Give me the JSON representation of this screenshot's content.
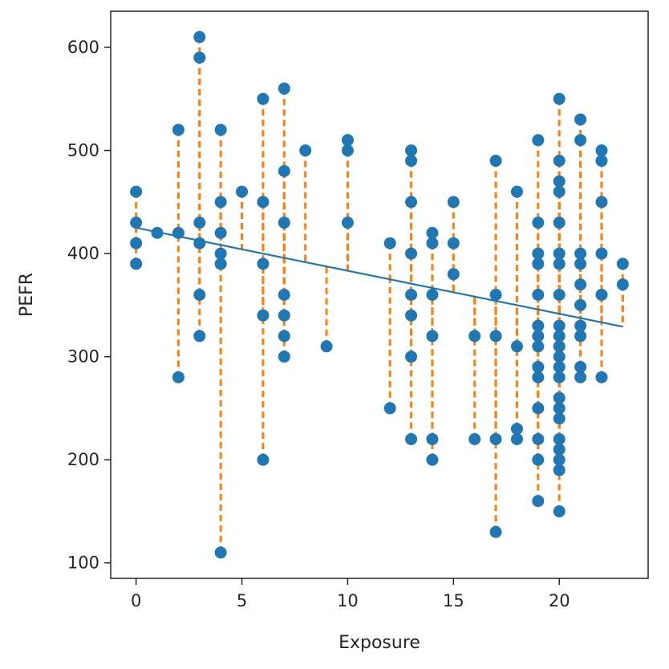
{
  "chart_data": {
    "type": "scatter",
    "title": "",
    "xlabel": "Exposure",
    "ylabel": "PEFR",
    "xlim": [
      -1.2,
      24.2
    ],
    "ylim": [
      85,
      635
    ],
    "xticks": [
      0,
      5,
      10,
      15,
      20
    ],
    "yticks": [
      100,
      200,
      300,
      400,
      500,
      600
    ],
    "grid": false,
    "colors": {
      "points": "#1f77b4",
      "fit_line": "#1f77b4",
      "residuals": "#ff7f0e"
    },
    "fit_line": {
      "intercept": 425,
      "slope": -4.17
    },
    "points": [
      [
        0,
        460
      ],
      [
        0,
        430
      ],
      [
        0,
        410
      ],
      [
        0,
        390
      ],
      [
        1,
        420
      ],
      [
        2,
        520
      ],
      [
        2,
        420
      ],
      [
        2,
        280
      ],
      [
        3,
        610
      ],
      [
        3,
        590
      ],
      [
        3,
        430
      ],
      [
        3,
        410
      ],
      [
        3,
        360
      ],
      [
        3,
        320
      ],
      [
        4,
        520
      ],
      [
        4,
        450
      ],
      [
        4,
        420
      ],
      [
        4,
        400
      ],
      [
        4,
        390
      ],
      [
        4,
        110
      ],
      [
        5,
        460
      ],
      [
        6,
        550
      ],
      [
        6,
        450
      ],
      [
        6,
        390
      ],
      [
        6,
        340
      ],
      [
        6,
        200
      ],
      [
        7,
        560
      ],
      [
        7,
        480
      ],
      [
        7,
        430
      ],
      [
        7,
        360
      ],
      [
        7,
        340
      ],
      [
        7,
        320
      ],
      [
        7,
        300
      ],
      [
        8,
        500
      ],
      [
        9,
        310
      ],
      [
        10,
        510
      ],
      [
        10,
        500
      ],
      [
        10,
        430
      ],
      [
        12,
        410
      ],
      [
        12,
        250
      ],
      [
        13,
        500
      ],
      [
        13,
        490
      ],
      [
        13,
        450
      ],
      [
        13,
        400
      ],
      [
        13,
        360
      ],
      [
        13,
        340
      ],
      [
        13,
        300
      ],
      [
        13,
        220
      ],
      [
        14,
        420
      ],
      [
        14,
        410
      ],
      [
        14,
        360
      ],
      [
        14,
        320
      ],
      [
        14,
        220
      ],
      [
        14,
        200
      ],
      [
        15,
        450
      ],
      [
        15,
        410
      ],
      [
        15,
        380
      ],
      [
        16,
        320
      ],
      [
        16,
        220
      ],
      [
        17,
        490
      ],
      [
        17,
        360
      ],
      [
        17,
        320
      ],
      [
        17,
        220
      ],
      [
        17,
        130
      ],
      [
        18,
        460
      ],
      [
        18,
        310
      ],
      [
        18,
        230
      ],
      [
        18,
        220
      ],
      [
        19,
        510
      ],
      [
        19,
        430
      ],
      [
        19,
        400
      ],
      [
        19,
        390
      ],
      [
        19,
        360
      ],
      [
        19,
        330
      ],
      [
        19,
        320
      ],
      [
        19,
        310
      ],
      [
        19,
        290
      ],
      [
        19,
        280
      ],
      [
        19,
        250
      ],
      [
        19,
        220
      ],
      [
        19,
        200
      ],
      [
        19,
        160
      ],
      [
        20,
        550
      ],
      [
        20,
        490
      ],
      [
        20,
        470
      ],
      [
        20,
        460
      ],
      [
        20,
        430
      ],
      [
        20,
        400
      ],
      [
        20,
        390
      ],
      [
        20,
        360
      ],
      [
        20,
        330
      ],
      [
        20,
        320
      ],
      [
        20,
        310
      ],
      [
        20,
        300
      ],
      [
        20,
        290
      ],
      [
        20,
        280
      ],
      [
        20,
        260
      ],
      [
        20,
        250
      ],
      [
        20,
        240
      ],
      [
        20,
        220
      ],
      [
        20,
        210
      ],
      [
        20,
        200
      ],
      [
        20,
        190
      ],
      [
        20,
        150
      ],
      [
        21,
        530
      ],
      [
        21,
        510
      ],
      [
        21,
        400
      ],
      [
        21,
        390
      ],
      [
        21,
        370
      ],
      [
        21,
        350
      ],
      [
        21,
        330
      ],
      [
        21,
        320
      ],
      [
        21,
        290
      ],
      [
        21,
        280
      ],
      [
        22,
        500
      ],
      [
        22,
        490
      ],
      [
        22,
        450
      ],
      [
        22,
        400
      ],
      [
        22,
        360
      ],
      [
        22,
        280
      ],
      [
        23,
        390
      ],
      [
        23,
        370
      ]
    ]
  }
}
